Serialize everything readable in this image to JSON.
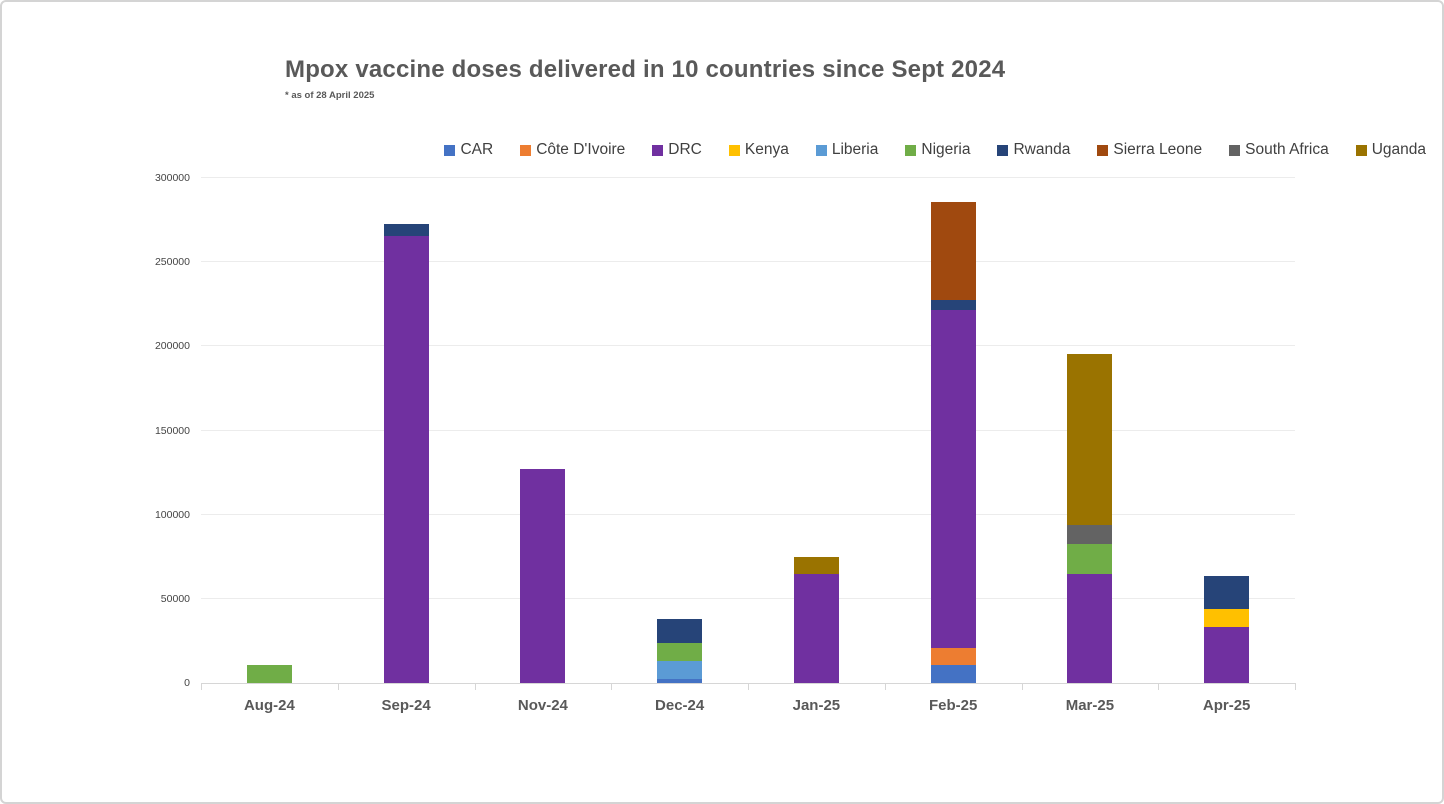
{
  "card": {
    "title": "Mpox vaccine doses delivered in 10 countries since Sept 2024",
    "subtitle": "* as of 28 April 2025"
  },
  "chart_data": {
    "type": "bar",
    "stacked": true,
    "title": "Mpox vaccine doses delivered in 10 countries since Sept 2024",
    "subtitle": "* as of 28 April 2025",
    "xlabel": "",
    "ylabel": "",
    "ylim": [
      0,
      300000
    ],
    "ytick_step": 50000,
    "grid": true,
    "legend_position": "top",
    "categories": [
      "Aug-24",
      "Sep-24",
      "Nov-24",
      "Dec-24",
      "Jan-25",
      "Feb-25",
      "Mar-25",
      "Apr-25"
    ],
    "series": [
      {
        "name": "CAR",
        "color": "#4472C4",
        "values": [
          0,
          0,
          0,
          2500,
          0,
          10500,
          0,
          0
        ]
      },
      {
        "name": "Côte D'Ivoire",
        "color": "#ED7D31",
        "values": [
          0,
          0,
          0,
          0,
          0,
          10500,
          0,
          0
        ]
      },
      {
        "name": "DRC",
        "color": "#7030A0",
        "values": [
          0,
          265000,
          127000,
          0,
          64500,
          200000,
          64500,
          33000
        ]
      },
      {
        "name": "Kenya",
        "color": "#FFC000",
        "values": [
          0,
          0,
          0,
          0,
          0,
          0,
          0,
          10700
        ]
      },
      {
        "name": "Liberia",
        "color": "#5B9BD5",
        "values": [
          0,
          0,
          0,
          10500,
          0,
          0,
          0,
          0
        ]
      },
      {
        "name": "Nigeria",
        "color": "#70AD47",
        "values": [
          10500,
          0,
          0,
          11000,
          0,
          0,
          18000,
          0
        ]
      },
      {
        "name": "Rwanda",
        "color": "#264478",
        "values": [
          0,
          7000,
          0,
          14000,
          0,
          6000,
          0,
          19500
        ]
      },
      {
        "name": "Sierra Leone",
        "color": "#A0490F",
        "values": [
          0,
          0,
          0,
          0,
          0,
          58500,
          0,
          0
        ]
      },
      {
        "name": "South Africa",
        "color": "#636363",
        "values": [
          0,
          0,
          0,
          0,
          0,
          0,
          11000,
          0
        ]
      },
      {
        "name": "Uganda",
        "color": "#9A7300",
        "values": [
          0,
          0,
          0,
          0,
          10500,
          0,
          101500,
          0
        ]
      }
    ]
  }
}
